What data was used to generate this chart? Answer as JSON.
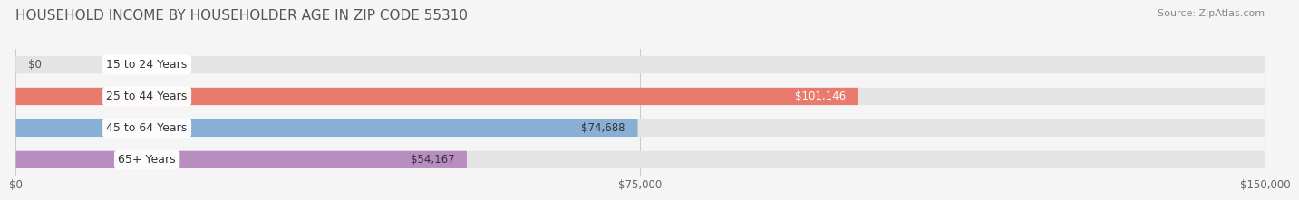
{
  "title": "HOUSEHOLD INCOME BY HOUSEHOLDER AGE IN ZIP CODE 55310",
  "source": "Source: ZipAtlas.com",
  "categories": [
    "15 to 24 Years",
    "25 to 44 Years",
    "45 to 64 Years",
    "65+ Years"
  ],
  "values": [
    0,
    101146,
    74688,
    54167
  ],
  "bar_colors": [
    "#f5c89a",
    "#e87b6e",
    "#8aafd4",
    "#b88ec0"
  ],
  "label_colors": [
    "#333333",
    "#ffffff",
    "#333333",
    "#333333"
  ],
  "xlim": [
    0,
    150000
  ],
  "xticks": [
    0,
    75000,
    150000
  ],
  "xtick_labels": [
    "$0",
    "$75,000",
    "$150,000"
  ],
  "value_labels": [
    "$0",
    "$101,146",
    "$74,688",
    "$54,167"
  ],
  "bg_color": "#f5f5f5",
  "bar_bg_color": "#e4e4e4",
  "label_box_color": "#ffffff",
  "bar_height": 0.55,
  "title_fontsize": 11,
  "label_fontsize": 9,
  "value_fontsize": 8.5,
  "tick_fontsize": 8.5
}
